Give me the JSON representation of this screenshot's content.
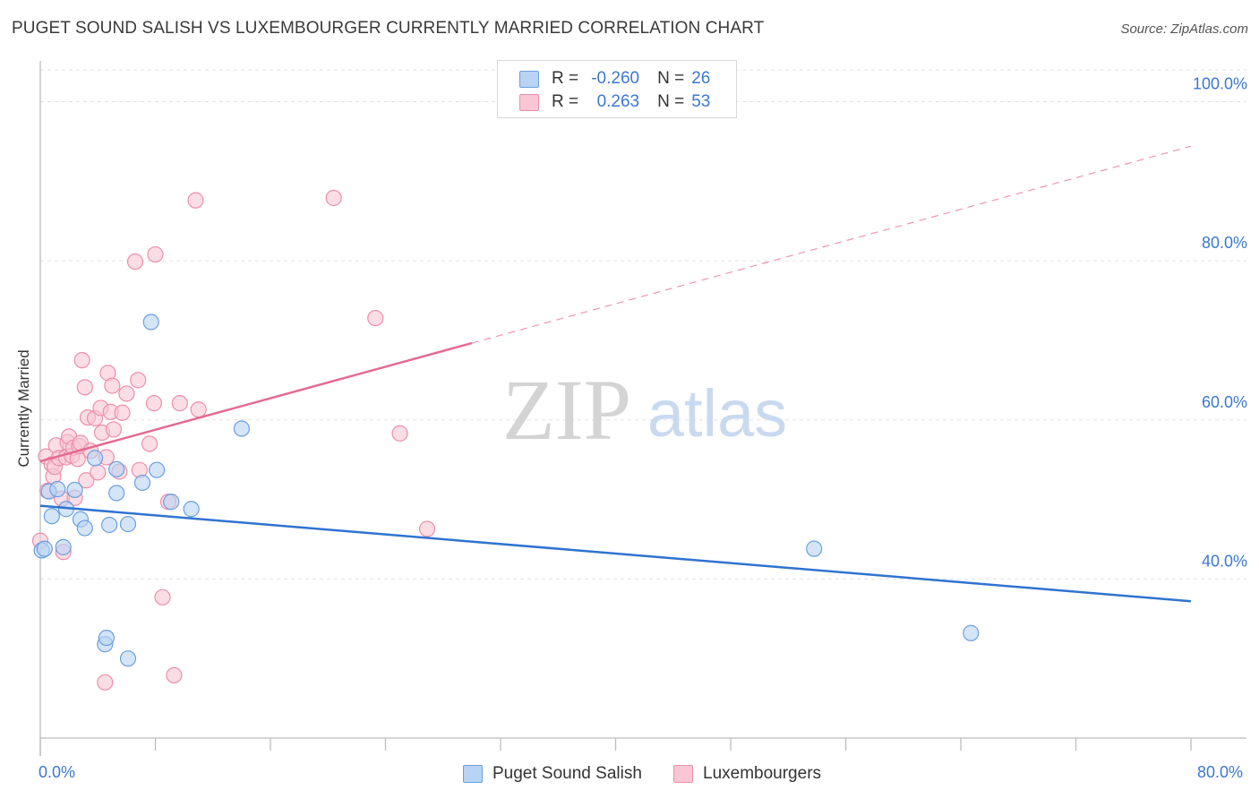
{
  "header": {
    "title": "PUGET SOUND SALISH VS LUXEMBOURGER CURRENTLY MARRIED CORRELATION CHART",
    "source": "Source: ZipAtlas.com"
  },
  "legend": {
    "r_label": "R =",
    "n_label": "N =",
    "items": [
      {
        "r": "-0.260",
        "n": "26"
      },
      {
        "r": "0.263",
        "n": "53"
      }
    ]
  },
  "watermark": {
    "zip": "ZIP",
    "atlas": "atlas"
  },
  "colors": {
    "blue_fill": "#b8d3f3",
    "blue_stroke": "#6b9fe0",
    "blue_line": "#2f73d0",
    "pink_fill": "#f8c6d4",
    "pink_stroke": "#ec8fab",
    "pink_line": "#e46a92",
    "tick_label": "#3b78d0",
    "grid": "#e3e3e3"
  },
  "chart_data": {
    "type": "scatter",
    "title": "PUGET SOUND SALISH VS LUXEMBOURGER CURRENTLY MARRIED CORRELATION CHART",
    "xlabel": "",
    "ylabel": "Currently Married",
    "xlim": [
      0,
      80
    ],
    "ylim": [
      20,
      104
    ],
    "x_tick_labels": [
      "0.0%",
      "80.0%"
    ],
    "y_ticks": [
      40,
      60,
      80,
      100
    ],
    "y_tick_labels": [
      "40.0%",
      "60.0%",
      "80.0%",
      "100.0%"
    ],
    "series": [
      {
        "name": "Puget Sound Salish",
        "color": "blue",
        "r": -0.26,
        "n": 26,
        "points": [
          [
            0.1,
            43.6
          ],
          [
            0.6,
            51.0
          ],
          [
            0.8,
            47.9
          ],
          [
            1.2,
            51.3
          ],
          [
            1.6,
            44.0
          ],
          [
            1.8,
            48.8
          ],
          [
            2.4,
            51.2
          ],
          [
            2.8,
            47.5
          ],
          [
            3.1,
            46.4
          ],
          [
            3.8,
            55.2
          ],
          [
            4.5,
            31.8
          ],
          [
            4.6,
            32.6
          ],
          [
            4.8,
            46.8
          ],
          [
            5.3,
            50.8
          ],
          [
            5.3,
            53.8
          ],
          [
            6.1,
            46.9
          ],
          [
            6.1,
            30.0
          ],
          [
            7.1,
            52.1
          ],
          [
            7.7,
            72.3
          ],
          [
            8.1,
            53.7
          ],
          [
            9.1,
            49.7
          ],
          [
            10.5,
            48.8
          ],
          [
            14.0,
            58.9
          ],
          [
            53.8,
            43.8
          ],
          [
            64.7,
            33.2
          ],
          [
            0.3,
            43.8
          ]
        ],
        "trend": {
          "x": [
            0,
            80
          ],
          "y": [
            49.2,
            37.2
          ],
          "solid_until": 80
        }
      },
      {
        "name": "Luxembourgers",
        "color": "pink",
        "r": 0.263,
        "n": 53,
        "points": [
          [
            0.0,
            44.8
          ],
          [
            0.4,
            55.4
          ],
          [
            0.5,
            51.1
          ],
          [
            0.8,
            54.4
          ],
          [
            0.9,
            52.9
          ],
          [
            1.0,
            54.1
          ],
          [
            1.1,
            56.8
          ],
          [
            1.3,
            55.2
          ],
          [
            1.5,
            50.1
          ],
          [
            1.6,
            43.4
          ],
          [
            1.8,
            55.3
          ],
          [
            1.9,
            57.2
          ],
          [
            2.0,
            57.9
          ],
          [
            2.2,
            55.5
          ],
          [
            2.3,
            56.5
          ],
          [
            2.4,
            50.2
          ],
          [
            2.6,
            55.1
          ],
          [
            2.7,
            56.7
          ],
          [
            2.8,
            57.1
          ],
          [
            2.9,
            67.5
          ],
          [
            3.1,
            64.1
          ],
          [
            3.2,
            52.4
          ],
          [
            3.3,
            60.3
          ],
          [
            3.5,
            56.1
          ],
          [
            3.8,
            60.2
          ],
          [
            4.0,
            53.4
          ],
          [
            4.2,
            61.5
          ],
          [
            4.3,
            58.4
          ],
          [
            4.5,
            27.0
          ],
          [
            4.6,
            55.3
          ],
          [
            4.7,
            65.9
          ],
          [
            4.9,
            61.0
          ],
          [
            5.0,
            64.3
          ],
          [
            5.1,
            58.8
          ],
          [
            5.5,
            53.5
          ],
          [
            5.7,
            60.9
          ],
          [
            6.0,
            63.3
          ],
          [
            6.6,
            79.9
          ],
          [
            6.8,
            65.0
          ],
          [
            6.9,
            53.7
          ],
          [
            7.6,
            57.0
          ],
          [
            7.9,
            62.1
          ],
          [
            8.0,
            80.8
          ],
          [
            8.5,
            37.7
          ],
          [
            8.9,
            49.7
          ],
          [
            9.3,
            27.9
          ],
          [
            9.7,
            62.1
          ],
          [
            10.8,
            87.6
          ],
          [
            11.0,
            61.3
          ],
          [
            20.4,
            87.9
          ],
          [
            23.3,
            72.8
          ],
          [
            25.0,
            58.3
          ],
          [
            26.9,
            46.3
          ]
        ],
        "trend": {
          "x": [
            0,
            80
          ],
          "y": [
            54.8,
            94.4
          ],
          "solid_until": 30
        }
      }
    ]
  }
}
